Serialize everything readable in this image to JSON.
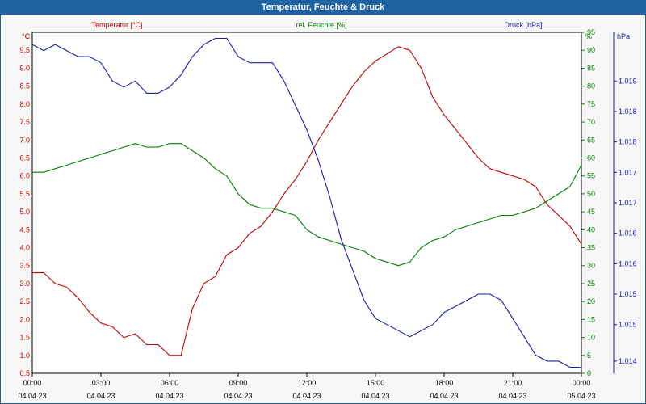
{
  "window": {
    "title": "Temperatur, Feuchte & Druck"
  },
  "colors": {
    "temperature": "#c00000",
    "humidity": "#008000",
    "pressure": "#1a1aa6",
    "grid": "#000000",
    "titlebar": "#1f63a3"
  },
  "chart_data": {
    "type": "line",
    "title": "Temperatur, Feuchte & Druck",
    "grid": true,
    "x_time_ticks": [
      "00:00",
      "03:00",
      "06:00",
      "09:00",
      "12:00",
      "15:00",
      "18:00",
      "21:00",
      "00:00"
    ],
    "x_date_ticks": [
      "04.04.23",
      "04.04.23",
      "04.04.23",
      "04.04.23",
      "04.04.23",
      "04.04.23",
      "04.04.23",
      "04.04.23",
      "05.04.23"
    ],
    "x_range_hours": [
      0,
      24
    ],
    "left_axis": {
      "unit": "°C",
      "label": "Temperatur [°C]",
      "range": [
        0.5,
        10.0
      ],
      "ticks": [
        "0.5",
        "1.0",
        "1.5",
        "2.0",
        "2.5",
        "3.0",
        "3.5",
        "4.0",
        "4.5",
        "5.0",
        "5.5",
        "6.0",
        "6.5",
        "7.0",
        "7.5",
        "8.0",
        "8.5",
        "9.0",
        "9.5"
      ]
    },
    "middle_axis": {
      "unit": "%",
      "label": "rel. Feuchte [%]",
      "range": [
        0,
        95
      ],
      "ticks": [
        "0",
        "5",
        "10",
        "15",
        "20",
        "25",
        "30",
        "35",
        "40",
        "45",
        "50",
        "55",
        "60",
        "65",
        "70",
        "75",
        "80",
        "85",
        "90",
        "95"
      ]
    },
    "right_axis": {
      "unit": "hPa",
      "label": "Druck [hPa]",
      "range": [
        1013.8,
        1019.4
      ],
      "ticks": [
        "1.014",
        "1.015",
        "1.015",
        "1.016",
        "1.016",
        "1.017",
        "1.017",
        "1.018",
        "1.018",
        "1.019"
      ],
      "tick_values": [
        1014.0,
        1014.6,
        1015.1,
        1015.6,
        1016.1,
        1016.6,
        1017.1,
        1017.6,
        1018.1,
        1018.6
      ]
    },
    "series": [
      {
        "name": "Temperatur [°C]",
        "axis": "left",
        "x": [
          0,
          0.5,
          1,
          1.5,
          2,
          2.5,
          3,
          3.5,
          4,
          4.5,
          5,
          5.5,
          6,
          6.5,
          7,
          7.5,
          8,
          8.5,
          9,
          9.5,
          10,
          10.5,
          11,
          11.5,
          12,
          12.5,
          13,
          13.5,
          14,
          14.5,
          15,
          15.5,
          16,
          16.5,
          17,
          17.5,
          18,
          18.5,
          19,
          19.5,
          20,
          20.5,
          21,
          21.5,
          22,
          22.5,
          23,
          23.5,
          24
        ],
        "values": [
          3.3,
          3.3,
          3.0,
          2.9,
          2.6,
          2.2,
          1.9,
          1.8,
          1.5,
          1.6,
          1.3,
          1.3,
          1.0,
          1.0,
          2.3,
          3.0,
          3.2,
          3.8,
          4.0,
          4.4,
          4.6,
          5.0,
          5.5,
          5.9,
          6.4,
          7.0,
          7.5,
          8.0,
          8.5,
          8.9,
          9.2,
          9.4,
          9.6,
          9.5,
          9.0,
          8.2,
          7.7,
          7.3,
          6.9,
          6.5,
          6.2,
          6.1,
          6.0,
          5.9,
          5.7,
          5.2,
          4.9,
          4.6,
          4.1
        ]
      },
      {
        "name": "rel. Feuchte [%]",
        "axis": "middle",
        "x": [
          0,
          0.5,
          1,
          1.5,
          2,
          2.5,
          3,
          3.5,
          4,
          4.5,
          5,
          5.5,
          6,
          6.5,
          7,
          7.5,
          8,
          8.5,
          9,
          9.5,
          10,
          10.5,
          11,
          11.5,
          12,
          12.5,
          13,
          13.5,
          14,
          14.5,
          15,
          15.5,
          16,
          16.5,
          17,
          17.5,
          18,
          18.5,
          19,
          19.5,
          20,
          20.5,
          21,
          21.5,
          22,
          22.5,
          23,
          23.5,
          24
        ],
        "values": [
          56,
          56,
          57,
          58,
          59,
          60,
          61,
          62,
          63,
          64,
          63,
          63,
          64,
          64,
          62,
          60,
          57,
          55,
          50,
          47,
          46,
          46,
          45,
          44,
          40,
          38,
          37,
          36,
          35,
          34,
          32,
          31,
          30,
          31,
          35,
          37,
          38,
          40,
          41,
          42,
          43,
          44,
          44,
          45,
          46,
          48,
          50,
          52,
          58
        ]
      },
      {
        "name": "Druck [hPa]",
        "axis": "right",
        "x": [
          0,
          0.5,
          1,
          1.5,
          2,
          2.5,
          3,
          3.5,
          4,
          4.5,
          5,
          5.5,
          6,
          6.5,
          7,
          7.5,
          8,
          8.5,
          9,
          9.5,
          10,
          10.5,
          11,
          11.5,
          12,
          12.5,
          13,
          13.5,
          14,
          14.5,
          15,
          15.5,
          16,
          16.5,
          17,
          17.5,
          18,
          18.5,
          19,
          19.5,
          20,
          20.5,
          21,
          21.5,
          22,
          22.5,
          23,
          23.5,
          24
        ],
        "values": [
          1019.2,
          1019.1,
          1019.2,
          1019.1,
          1019.0,
          1019.0,
          1018.9,
          1018.6,
          1018.5,
          1018.6,
          1018.4,
          1018.4,
          1018.5,
          1018.7,
          1019.0,
          1019.2,
          1019.3,
          1019.3,
          1019.0,
          1018.9,
          1018.9,
          1018.9,
          1018.6,
          1018.2,
          1017.8,
          1017.3,
          1016.7,
          1016.0,
          1015.5,
          1015.0,
          1014.7,
          1014.6,
          1014.5,
          1014.4,
          1014.5,
          1014.6,
          1014.8,
          1014.9,
          1015.0,
          1015.1,
          1015.1,
          1015.0,
          1014.7,
          1014.4,
          1014.1,
          1014.0,
          1014.0,
          1013.9,
          1013.9
        ]
      }
    ]
  }
}
